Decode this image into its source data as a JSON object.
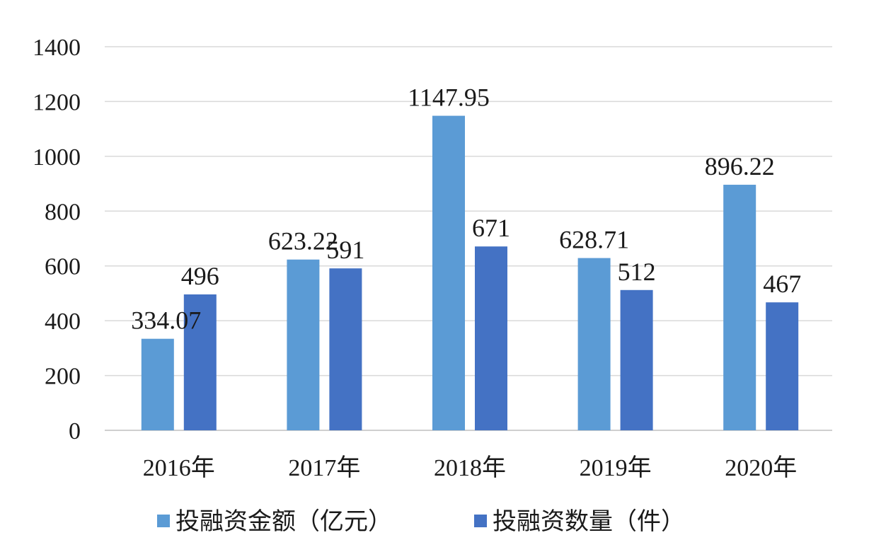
{
  "chart_data": {
    "type": "bar",
    "categories": [
      "2016年",
      "2017年",
      "2018年",
      "2019年",
      "2020年"
    ],
    "series": [
      {
        "name": "投融资金额（亿元）",
        "color": "#5b9bd5",
        "values": [
          334.07,
          623.22,
          1147.95,
          628.71,
          896.22
        ],
        "labels": [
          "334.07",
          "623.22",
          "1147.95",
          "628.71",
          "896.22"
        ]
      },
      {
        "name": "投融资数量（件）",
        "color": "#4472c4",
        "values": [
          496,
          591,
          671,
          512,
          467
        ],
        "labels": [
          "496",
          "591",
          "671",
          "512",
          "467"
        ]
      }
    ],
    "title": "",
    "xlabel": "",
    "ylabel": "",
    "ylim": [
      0,
      1400
    ],
    "yticks": [
      0,
      200,
      400,
      600,
      800,
      1000,
      1200,
      1400
    ],
    "ytick_labels": [
      "0",
      "200",
      "400",
      "600",
      "800",
      "1000",
      "1200",
      "1400"
    ],
    "grid": true,
    "legend": "bottom"
  }
}
